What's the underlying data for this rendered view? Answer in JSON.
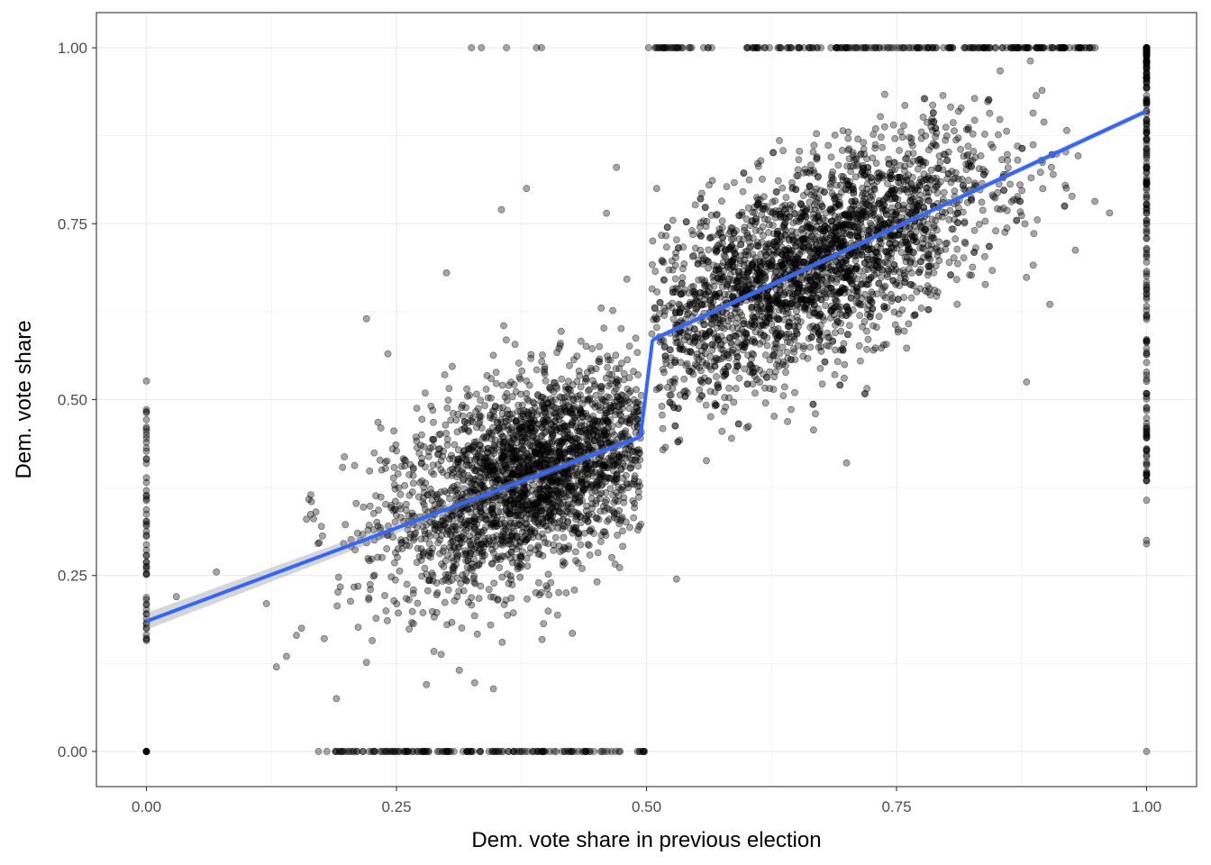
{
  "chart_data": {
    "type": "scatter",
    "xlabel": "Dem. vote share in previous election",
    "ylabel": "Dem. vote share",
    "xlim": [
      -0.05,
      1.05
    ],
    "ylim": [
      -0.05,
      1.05
    ],
    "x_ticks": [
      {
        "value": 0.0,
        "label": "0.00"
      },
      {
        "value": 0.25,
        "label": "0.25"
      },
      {
        "value": 0.5,
        "label": "0.50"
      },
      {
        "value": 0.75,
        "label": "0.75"
      },
      {
        "value": 1.0,
        "label": "1.00"
      }
    ],
    "y_ticks": [
      {
        "value": 0.0,
        "label": "0.00"
      },
      {
        "value": 0.25,
        "label": "0.25"
      },
      {
        "value": 0.5,
        "label": "0.50"
      },
      {
        "value": 0.75,
        "label": "0.75"
      },
      {
        "value": 1.0,
        "label": "1.00"
      }
    ],
    "grid": true,
    "points_description": {
      "approx_count": 6000,
      "point_color": "#000000",
      "point_opacity": 0.35,
      "cloud_left": {
        "x_range": [
          0.15,
          0.5
        ],
        "trend": "y ≈ 0.19 + 0.52x",
        "spread_sd": 0.07
      },
      "cloud_right": {
        "x_range": [
          0.5,
          0.97
        ],
        "trend": "y ≈ 0.58 + 0.65(x-0.5)",
        "spread_sd": 0.07
      },
      "column_at_x0": {
        "x": 0.0,
        "y_range": [
          0.15,
          0.53
        ],
        "plus_zero": true
      },
      "column_at_x1": {
        "x": 1.0,
        "y_range": [
          0.29,
          1.0
        ],
        "plus_zero": true
      },
      "row_at_y0": {
        "y": 0.0,
        "x_range": [
          0.17,
          0.5
        ]
      },
      "row_at_y1": {
        "y": 1.0,
        "x_range": [
          0.5,
          0.95
        ],
        "extra_x": [
          0.325,
          0.335,
          0.36,
          0.39,
          0.395
        ]
      }
    },
    "fit_lines": [
      {
        "name": "",
        "color": "#3366FF",
        "x": [
          0.0,
          0.494
        ],
        "y": [
          0.185,
          0.447
        ],
        "ci_color": "#999999"
      },
      {
        "name": "",
        "color": "#3366FF",
        "x": [
          0.506,
          1.0
        ],
        "y": [
          0.585,
          0.91
        ],
        "ci_color": "#999999"
      }
    ],
    "connector": {
      "x": [
        0.494,
        0.506
      ],
      "y": [
        0.447,
        0.585
      ]
    }
  }
}
